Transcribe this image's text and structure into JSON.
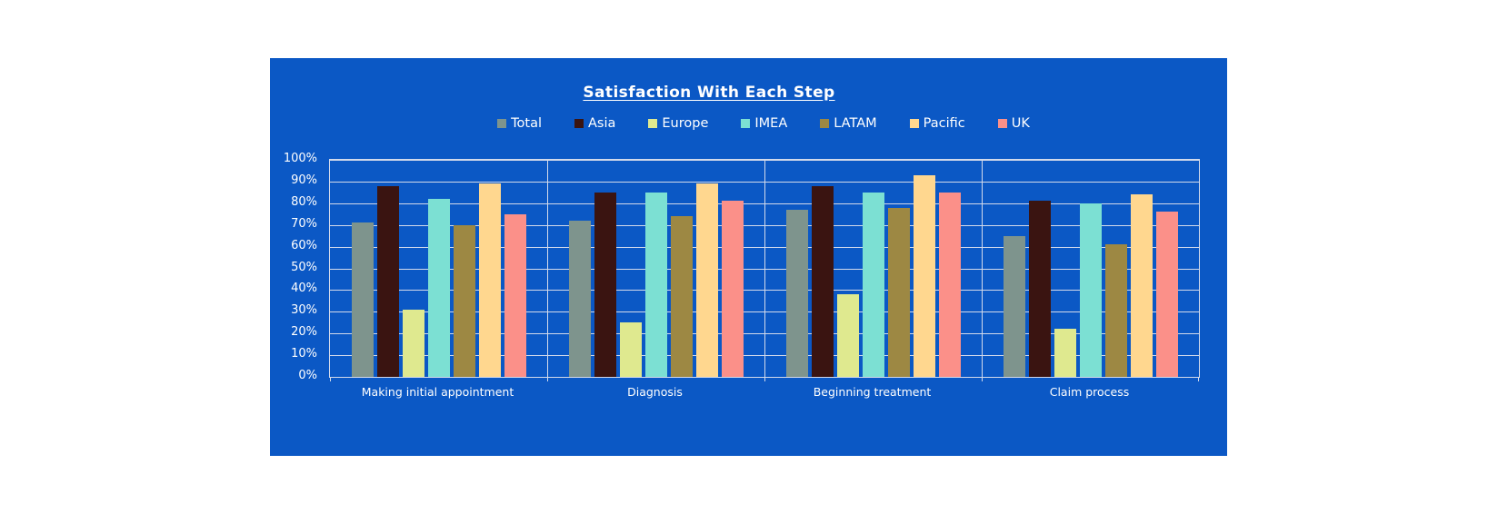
{
  "title": "Satisfaction With Each Step",
  "colors": {
    "panel_background": "#0b58c5",
    "page_background": "#ffffff",
    "gridline": "#d3daeb",
    "text": "#ffffff"
  },
  "chart_data": {
    "type": "bar",
    "title": "Satisfaction With Each Step",
    "categories": [
      "Making initial appointment",
      "Diagnosis",
      "Beginning treatment",
      "Claim process"
    ],
    "series": [
      {
        "name": "Total",
        "color": "#7e948d",
        "values": [
          71,
          72,
          77,
          65
        ]
      },
      {
        "name": "Asia",
        "color": "#3a1411",
        "values": [
          88,
          85,
          88,
          81
        ]
      },
      {
        "name": "Europe",
        "color": "#dfe98f",
        "values": [
          31,
          25,
          38,
          22
        ]
      },
      {
        "name": "IMEA",
        "color": "#7ce0d3",
        "values": [
          82,
          85,
          85,
          80
        ]
      },
      {
        "name": "LATAM",
        "color": "#9d8843",
        "values": [
          70,
          74,
          78,
          61
        ]
      },
      {
        "name": "Pacific",
        "color": "#ffd78f",
        "values": [
          89,
          89,
          93,
          84
        ]
      },
      {
        "name": "UK",
        "color": "#fb9089",
        "values": [
          75,
          81,
          85,
          76
        ]
      }
    ],
    "xlabel": "",
    "ylabel": "",
    "ylim": [
      0,
      100
    ],
    "y_ticks": [
      "0%",
      "10%",
      "20%",
      "30%",
      "40%",
      "50%",
      "60%",
      "70%",
      "80%",
      "90%",
      "100%"
    ],
    "grid": true,
    "legend_position": "top"
  }
}
